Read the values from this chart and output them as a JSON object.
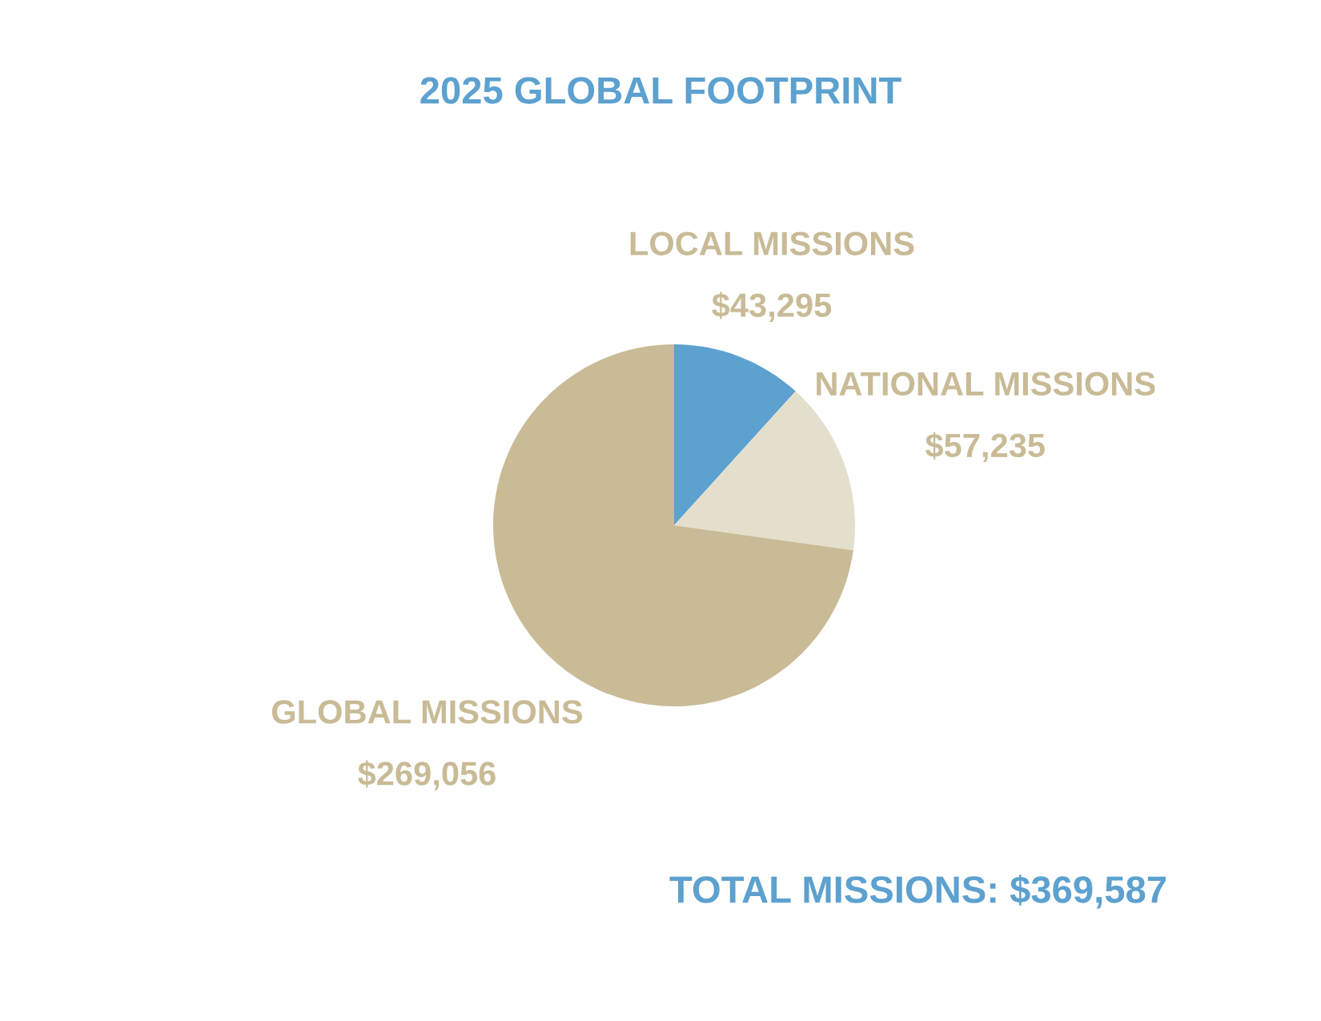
{
  "chart_data": {
    "type": "pie",
    "title": "2025 GLOBAL FOOTPRINT",
    "categories": [
      "LOCAL MISSIONS",
      "NATIONAL MISSIONS",
      "GLOBAL MISSIONS"
    ],
    "values": [
      43295,
      57235,
      269056
    ],
    "colors": [
      "#5ca1d0",
      "#e4dfcc",
      "#c8bb96"
    ],
    "value_labels": [
      "$43,295",
      "$57,235",
      "$269,056"
    ],
    "annotations": [
      "TOTAL MISSIONS: $369,587"
    ]
  }
}
